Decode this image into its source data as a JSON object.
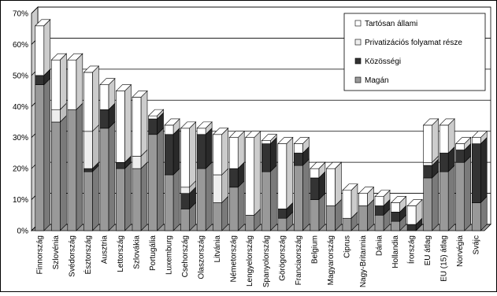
{
  "chart_data": {
    "type": "bar3d_stacked",
    "categories": [
      "Finnország",
      "Szlovénia",
      "Svédország",
      "Észtország",
      "Ausztria",
      "Lettország",
      "Szlovákia",
      "Portugália",
      "Luxemburg",
      "Csehország",
      "Olaszország",
      "Litvánia",
      "Németország",
      "Lengyelország",
      "Spanyolország",
      "Görögország",
      "Franciaország",
      "Belgium",
      "Magyarország",
      "Ciprus",
      "Nagy-Britannia",
      "Dánia",
      "Hollandia",
      "Írország",
      "EU átlag",
      "EU (15)  átlag",
      "Norvégia",
      "Svájc"
    ],
    "series": [
      {
        "name": "Magán",
        "color": "#999999",
        "values": [
          47,
          35,
          39,
          19,
          33,
          20,
          20,
          31,
          18,
          7,
          20,
          9,
          14,
          5,
          19,
          4,
          21,
          10,
          8,
          4,
          8,
          5,
          3,
          0,
          17,
          19,
          22,
          9
        ]
      },
      {
        "name": "Közösségi",
        "color": "#333333",
        "values": [
          3,
          0,
          0,
          1,
          6,
          2,
          0,
          5,
          13,
          5,
          11,
          0,
          6,
          0,
          9,
          3,
          4,
          7,
          0,
          0,
          0,
          3,
          3,
          2,
          4,
          6,
          4,
          19
        ]
      },
      {
        "name": "Privatizációs folyamat része",
        "color": "#eeeeee",
        "values": [
          0,
          4,
          0,
          12,
          0,
          0,
          4,
          0,
          0,
          2,
          0,
          9,
          0,
          0,
          0,
          0,
          0,
          0,
          0,
          0,
          0,
          0,
          0,
          0,
          1,
          0,
          0,
          0
        ]
      },
      {
        "name": "Tartósan állami",
        "color": "#ffffff",
        "values": [
          16,
          16,
          16,
          19,
          8,
          23,
          19,
          1,
          3,
          19,
          2,
          13,
          10,
          25,
          1,
          21,
          3,
          3,
          12,
          9,
          4,
          3,
          3,
          6,
          12,
          9,
          2,
          2
        ]
      }
    ],
    "ylim": [
      0,
      70
    ],
    "yticks": [
      {
        "value": 0,
        "label": "0%"
      },
      {
        "value": 10,
        "label": "10%"
      },
      {
        "value": 20,
        "label": "20%"
      },
      {
        "value": 30,
        "label": "30%"
      },
      {
        "value": 40,
        "label": "40%"
      },
      {
        "value": 50,
        "label": "50%"
      },
      {
        "value": 60,
        "label": "60%"
      },
      {
        "value": 70,
        "label": "70%"
      }
    ],
    "grid": true
  }
}
